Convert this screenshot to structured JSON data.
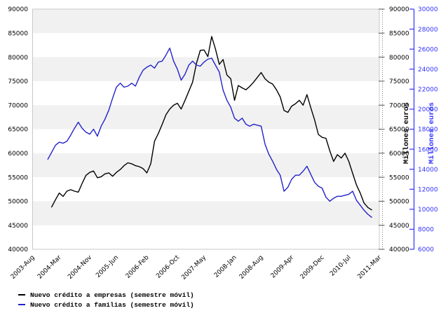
{
  "chart_data": {
    "type": "line",
    "title": "",
    "units": "Millones euros",
    "grid": {
      "horizontal_bands": true,
      "band_color": "#f1f1f1",
      "band_step": 5000
    },
    "x_axis": {
      "tick_labels": [
        "2003-Aug",
        "2004-Mar",
        "2004-Nov",
        "2005-Jun",
        "2006-Feb",
        "2006-Oct",
        "2007-May",
        "2008-Jan",
        "2008-Aug",
        "2009-Apr",
        "2009-Dec",
        "2010-Jul",
        "2011-Mar"
      ],
      "tick_month_offsets": [
        0,
        7,
        15,
        22,
        30,
        38,
        45,
        53,
        60,
        68,
        76,
        83,
        91
      ],
      "range_months": 91
    },
    "y_axis_left": {
      "min": 40000,
      "max": 90000,
      "step": 5000,
      "tick_labels": [
        "90000",
        "85000",
        "80000",
        "75000",
        "70000",
        "65000",
        "60000",
        "55000",
        "50000",
        "45000",
        "40000"
      ]
    },
    "y_axis_right": {
      "title": "Millones euros",
      "min": 40000,
      "max": 90000,
      "step": 5000,
      "tick_labels": [
        "90000",
        "85000",
        "80000",
        "75000",
        "70000",
        "65000",
        "60000",
        "55000",
        "50000",
        "45000",
        "40000"
      ]
    },
    "y_axis_far_right": {
      "title": "Millones euros",
      "color": "#3333ff",
      "min": 6000,
      "max": 30000,
      "step": 2000,
      "tick_labels": [
        "30000",
        "28000",
        "26000",
        "24000",
        "22000",
        "20000",
        "18000",
        "16000",
        "14000",
        "12000",
        "10000",
        "8000",
        "6000"
      ]
    },
    "legend": {
      "position": "bottom-left"
    },
    "series": [
      {
        "name": "Nuevo crédito a empresas (semestre móvil)",
        "color": "#000000",
        "axis": "left",
        "start": "2004-01",
        "start_month_offset": 5,
        "frequency": "monthly",
        "values": [
          48800,
          50300,
          51700,
          51000,
          52100,
          52400,
          52100,
          51900,
          53700,
          55400,
          56000,
          56300,
          54900,
          55100,
          55700,
          55900,
          55200,
          56000,
          56600,
          57400,
          58000,
          57800,
          57400,
          57200,
          56800,
          55900,
          57800,
          62500,
          64100,
          66000,
          68000,
          69200,
          70000,
          70400,
          69200,
          71000,
          72900,
          74800,
          78700,
          81400,
          81500,
          80100,
          84300,
          81700,
          78500,
          79500,
          76300,
          75500,
          71000,
          74100,
          73600,
          73200,
          73900,
          74800,
          75800,
          76800,
          75500,
          74800,
          74400,
          73200,
          71700,
          68900,
          68500,
          69800,
          70300,
          71000,
          70000,
          72200,
          69500,
          67000,
          63900,
          63300,
          63100,
          60500,
          58300,
          59700,
          59000,
          60000,
          58300,
          55800,
          53400,
          51700,
          49600,
          48700,
          48200
        ]
      },
      {
        "name": "Nuevo crédito a familias (semestre móvil)",
        "color": "#2222cc",
        "axis": "far_right",
        "start": "2003-12",
        "start_month_offset": 4,
        "frequency": "monthly",
        "values": [
          15000,
          15700,
          16400,
          16700,
          16600,
          16800,
          17400,
          18100,
          18700,
          18100,
          17700,
          17500,
          18000,
          17300,
          18300,
          19000,
          19900,
          21100,
          22200,
          22600,
          22200,
          22300,
          22600,
          22300,
          23200,
          23900,
          24200,
          24400,
          24100,
          24700,
          24800,
          25400,
          26100,
          24800,
          24000,
          22900,
          23500,
          24400,
          24800,
          24400,
          24300,
          24700,
          25000,
          25100,
          24400,
          23700,
          21900,
          20900,
          20200,
          19100,
          18800,
          19100,
          18500,
          18300,
          18500,
          18400,
          18300,
          16500,
          15500,
          14800,
          14000,
          13400,
          11800,
          12200,
          13000,
          13400,
          13400,
          13800,
          14300,
          13500,
          12700,
          12300,
          12100,
          11200,
          10800,
          11100,
          11300,
          11300,
          11400,
          11500,
          11800,
          10900,
          10400,
          9900,
          9500,
          9200
        ]
      }
    ]
  }
}
